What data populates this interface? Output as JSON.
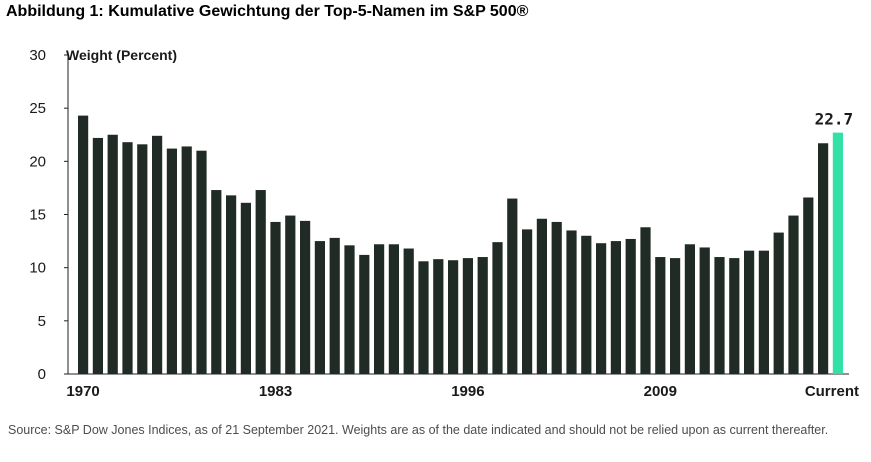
{
  "figure_title": "Abbildung 1: Kumulative Gewichtung der Top-5-Namen im S&P 500®",
  "source_note": "Source: S&P Dow Jones Indices, as of 21 September 2021. Weights are as of the date indicated and should not be relied upon as current thereafter.",
  "colors": {
    "bar": "#1f2b24",
    "highlight": "#33e0a6",
    "axis": "#222222",
    "text": "#1a1a1a"
  },
  "chart_data": {
    "type": "bar",
    "title": "",
    "ylabel": "Weight (Percent)",
    "xlabel": "",
    "ylim": [
      0,
      30
    ],
    "yticks": [
      0,
      5,
      10,
      15,
      20,
      25,
      30
    ],
    "grid": false,
    "x_tick_labels": [
      {
        "label": "1970",
        "at_index": 0
      },
      {
        "label": "1983",
        "at_index": 13
      },
      {
        "label": "1996",
        "at_index": 26
      },
      {
        "label": "2009",
        "at_index": 39
      },
      {
        "label": "Current",
        "at_index": 51
      }
    ],
    "values": [
      24.3,
      22.2,
      22.5,
      21.8,
      21.6,
      22.4,
      21.2,
      21.4,
      21.0,
      17.3,
      16.8,
      16.1,
      17.3,
      14.3,
      14.9,
      14.4,
      12.5,
      12.8,
      12.1,
      11.2,
      12.2,
      12.2,
      11.8,
      10.6,
      10.8,
      10.7,
      10.9,
      11.0,
      12.4,
      16.5,
      13.6,
      14.6,
      14.3,
      13.5,
      13.0,
      12.3,
      12.5,
      12.7,
      13.8,
      11.0,
      10.9,
      12.2,
      11.9,
      11.0,
      10.9,
      11.6,
      11.6,
      13.3,
      14.9,
      16.6,
      21.7,
      22.7
    ],
    "highlight_index": 51,
    "highlight_label": "22.7"
  }
}
